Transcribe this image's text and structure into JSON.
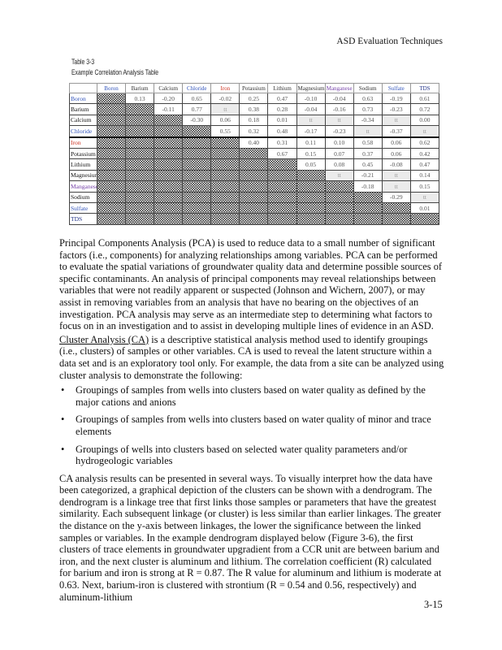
{
  "header": {
    "title": "ASD Evaluation Techniques"
  },
  "table": {
    "number": "Table 3-3",
    "caption": "Example Correlation Analysis Table",
    "columns": [
      "Boron",
      "Barium",
      "Calcium",
      "Chloride",
      "Iron",
      "Potassium",
      "Lithium",
      "Magnesium",
      "Manganese",
      "Sodium",
      "Sulfate",
      "TDS"
    ],
    "label_colors": {
      "Boron": "#3355bb",
      "Chloride": "#3355bb",
      "Iron": "#cc3322",
      "Manganese": "#7744aa",
      "Sulfate": "#3355bb",
      "TDS": "#223388"
    },
    "rows": [
      {
        "label": "Boron",
        "values": [
          null,
          "0.13",
          "-0.20",
          "0.65",
          "-0.02",
          "0.25",
          "0.47",
          "-0.10",
          "-0.04",
          "0.63",
          "-0.19",
          "0.61"
        ]
      },
      {
        "label": "Barium",
        "values": [
          null,
          null,
          "-0.11",
          "0.77",
          "tt",
          "0.38",
          "0.28",
          "-0.04",
          "-0.16",
          "0.73",
          "-0.23",
          "0.72"
        ]
      },
      {
        "label": "Calcium",
        "values": [
          null,
          null,
          null,
          "-0.30",
          "0.06",
          "0.18",
          "0.01",
          "tt",
          "tt",
          "-0.34",
          "tt",
          "0.00"
        ]
      },
      {
        "label": "Chloride",
        "values": [
          null,
          null,
          null,
          null,
          "0.55",
          "0.32",
          "0.48",
          "-0.17",
          "-0.23",
          "tt",
          "-0.37",
          "tt"
        ]
      },
      {
        "label": "Iron",
        "values": [
          null,
          null,
          null,
          null,
          null,
          "0.40",
          "0.31",
          "0.11",
          "0.10",
          "0.58",
          "0.06",
          "0.62"
        ]
      },
      {
        "label": "Potassium",
        "values": [
          null,
          null,
          null,
          null,
          null,
          null,
          "0.67",
          "0.15",
          "0.07",
          "0.37",
          "0.06",
          "0.42"
        ]
      },
      {
        "label": "Lithium",
        "values": [
          null,
          null,
          null,
          null,
          null,
          null,
          null,
          "0.05",
          "0.08",
          "0.45",
          "-0.08",
          "0.47"
        ]
      },
      {
        "label": "Magnesium",
        "values": [
          null,
          null,
          null,
          null,
          null,
          null,
          null,
          null,
          "tt",
          "-0.21",
          "tt",
          "0.14"
        ]
      },
      {
        "label": "Manganese",
        "values": [
          null,
          null,
          null,
          null,
          null,
          null,
          null,
          null,
          null,
          "-0.18",
          "tt",
          "0.15"
        ]
      },
      {
        "label": "Sodium",
        "values": [
          null,
          null,
          null,
          null,
          null,
          null,
          null,
          null,
          null,
          null,
          "-0.29",
          "tt"
        ]
      },
      {
        "label": "Sulfate",
        "values": [
          null,
          null,
          null,
          null,
          null,
          null,
          null,
          null,
          null,
          null,
          null,
          "0.01"
        ]
      },
      {
        "label": "TDS",
        "values": [
          null,
          null,
          null,
          null,
          null,
          null,
          null,
          null,
          null,
          null,
          null,
          null
        ]
      }
    ]
  },
  "body": {
    "p1": "Principal Components Analysis (PCA) is used to reduce data to a small number of significant factors (i.e., components) for analyzing relationships among variables.  PCA can be  performed to evaluate the spatial variations of groundwater quality data and determine possible sources of specific contaminants.  An analysis of principal components may reveal relationships between variables that were not readily apparent or suspected (Johnson and Wichern, 2007), or may assist in removing variables from an analysis that have no bearing on the objectives of an investigation. PCA analysis may serve as an intermediate step to determining what factors to focus on in an investigation and to assist in developing multiple lines of evidence in an ASD.",
    "p2_term": "Cluster Analysis (CA)",
    "p2": " is a descriptive statistical analysis method used to identify groupings (i.e., clusters) of samples or other variables.  CA is used to reveal the latent structure within a data set and is an exploratory tool only.  For example, the data from a site can be analyzed using cluster analysis to demonstrate the following:",
    "bullets": [
      "Groupings of samples from wells into clusters based on water quality as defined by the major cations and anions",
      "Groupings of samples from wells into clusters based on water quality of minor and trace elements",
      "Groupings of wells into clusters based on selected water quality parameters and/or hydrogeologic variables"
    ],
    "p3": "CA analysis results can be presented in several ways. To visually interpret how the data have been categorized, a graphical depiction of the clusters can be shown with a dendrogram.  The dendrogram is a linkage tree that first links those samples or parameters that have the greatest similarity. Each subsequent linkage (or cluster) is less similar than earlier linkages.  The greater the distance on the y-axis between linkages, the lower the significance between the linked samples or variables. In the example dendrogram displayed below (Figure  3-6), the first clusters of trace elements in groundwater upgradient from a CCR unit are between barium and iron, and the next cluster is aluminum and lithium.  The correlation coefficient (R) calculated for barium and iron is strong at R = 0.87.  The R value for aluminum  and lithium is moderate at 0.63.  Next, barium-iron is clustered with strontium (R = 0.54 and 0.56, respectively) and aluminum-lithium"
  },
  "footer": {
    "page": "3-15"
  }
}
